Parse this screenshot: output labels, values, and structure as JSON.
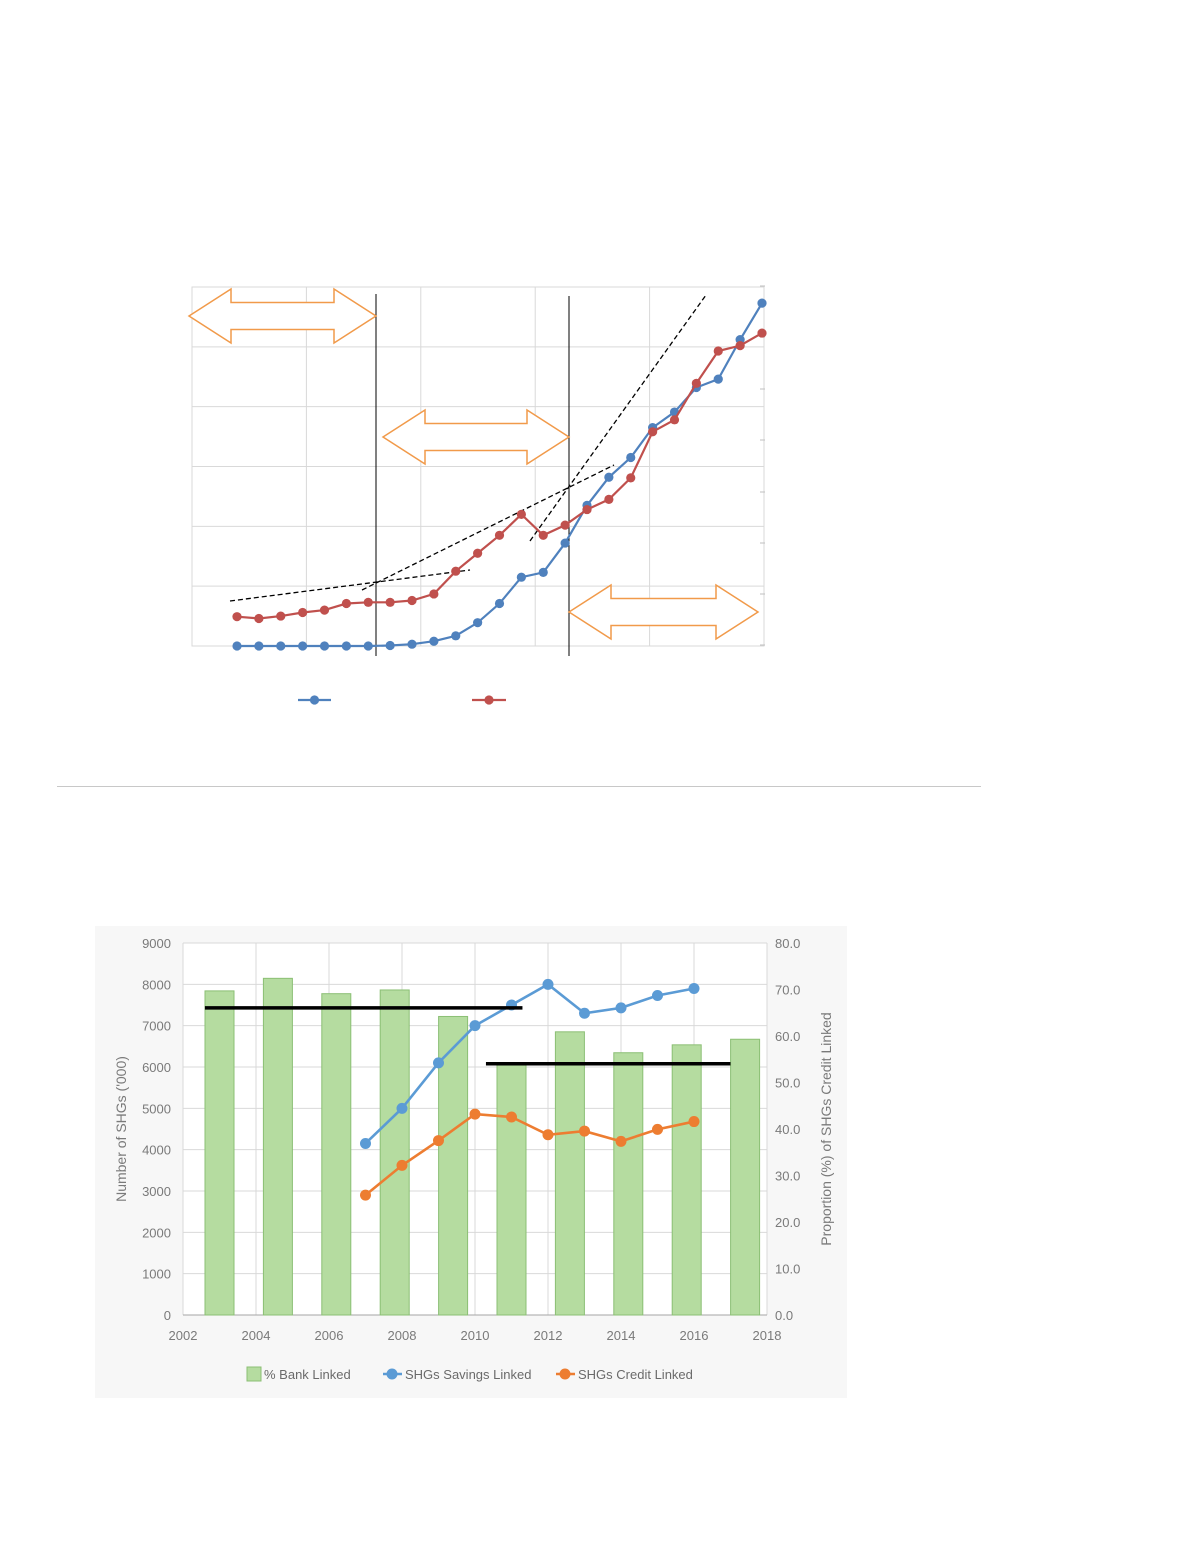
{
  "colors": {
    "top_series_blue": "#4f81bd",
    "top_series_red": "#c0504d",
    "arrow_orange": "#f19a4a",
    "bar_fill": "#b5dca0",
    "bar_stroke": "#8bbf74",
    "savings_blue": "#5b9bd5",
    "credit_orange": "#ed7d31",
    "reference_line": "#000000"
  },
  "chart_data": [
    {
      "type": "line",
      "x": [
        1,
        2,
        3,
        4,
        5,
        6,
        7,
        8,
        9,
        10,
        11,
        12,
        13,
        14,
        15,
        16,
        17,
        18,
        19,
        20,
        21,
        22,
        23,
        24,
        25
      ],
      "series": [
        {
          "values": [
            0,
            0,
            0,
            0,
            0,
            0,
            0,
            0.08,
            0.3,
            0.8,
            1.7,
            3.9,
            7.1,
            11.5,
            12.3,
            17.2,
            23.5,
            28.2,
            31.5,
            36.5,
            39.1,
            43.2,
            44.6,
            51.2,
            57.3
          ]
        },
        {
          "values": [
            4.9,
            4.6,
            5.0,
            5.6,
            6.0,
            7.1,
            7.3,
            7.3,
            7.6,
            8.7,
            12.5,
            15.5,
            18.5,
            22.0,
            18.5,
            20.2,
            22.8,
            24.5,
            28.1,
            35.8,
            37.8,
            43.9,
            49.3,
            50.2,
            52.3
          ]
        }
      ],
      "ylim": [
        0,
        60
      ],
      "grid": true,
      "annotations": {
        "phase_arrows": 3,
        "phase_dividers": 2,
        "trend_lines_dashed": 3
      }
    },
    {
      "type": "bar",
      "x_ticks": [
        "2002",
        "2004",
        "2006",
        "2008",
        "2010",
        "2012",
        "2014",
        "2016",
        "2018"
      ],
      "y_left_ticks": [
        "0",
        "1000",
        "2000",
        "3000",
        "4000",
        "5000",
        "6000",
        "7000",
        "8000",
        "9000"
      ],
      "y_right_ticks": [
        "0.0",
        "10.0",
        "20.0",
        "30.0",
        "40.0",
        "50.0",
        "60.0",
        "70.0",
        "80.0"
      ],
      "ylabel_left": "Number of SHGs ('000)",
      "ylabel_right": "Proportion (%) of SHGs Credit Linked",
      "xlim": [
        2002,
        2018
      ],
      "ylim_left": [
        0,
        9000
      ],
      "ylim_right": [
        0,
        80
      ],
      "legend_position": "bottom",
      "bars": {
        "name": "% Bank Linked",
        "axis": "right",
        "x": [
          2003,
          2004.6,
          2006.2,
          2007.8,
          2009.4,
          2011,
          2012.6,
          2014.2,
          2015.8,
          2017.4
        ],
        "values": [
          69.7,
          72.4,
          69.1,
          69.9,
          64.2,
          54.0,
          60.9,
          56.4,
          58.1,
          59.3
        ]
      },
      "series": [
        {
          "name": "SHGs Savings Linked",
          "axis": "left",
          "x": [
            2007,
            2008,
            2009,
            2010,
            2011,
            2012,
            2013,
            2014,
            2015,
            2016
          ],
          "values": [
            4150,
            5000,
            6100,
            7000,
            7500,
            8000,
            7300,
            7430,
            7730,
            7900
          ]
        },
        {
          "name": "SHGs Credit Linked",
          "axis": "left",
          "x": [
            2007,
            2008,
            2009,
            2010,
            2011,
            2012,
            2013,
            2014,
            2015,
            2016
          ],
          "values": [
            2900,
            3620,
            4220,
            4860,
            4790,
            4360,
            4450,
            4200,
            4490,
            4680
          ]
        }
      ],
      "reference_lines": [
        {
          "axis": "left",
          "x_start": 2002.6,
          "x_end": 2011.3,
          "value": 7430
        },
        {
          "axis": "left",
          "x_start": 2010.3,
          "x_end": 2017.0,
          "value": 6080
        }
      ]
    }
  ]
}
